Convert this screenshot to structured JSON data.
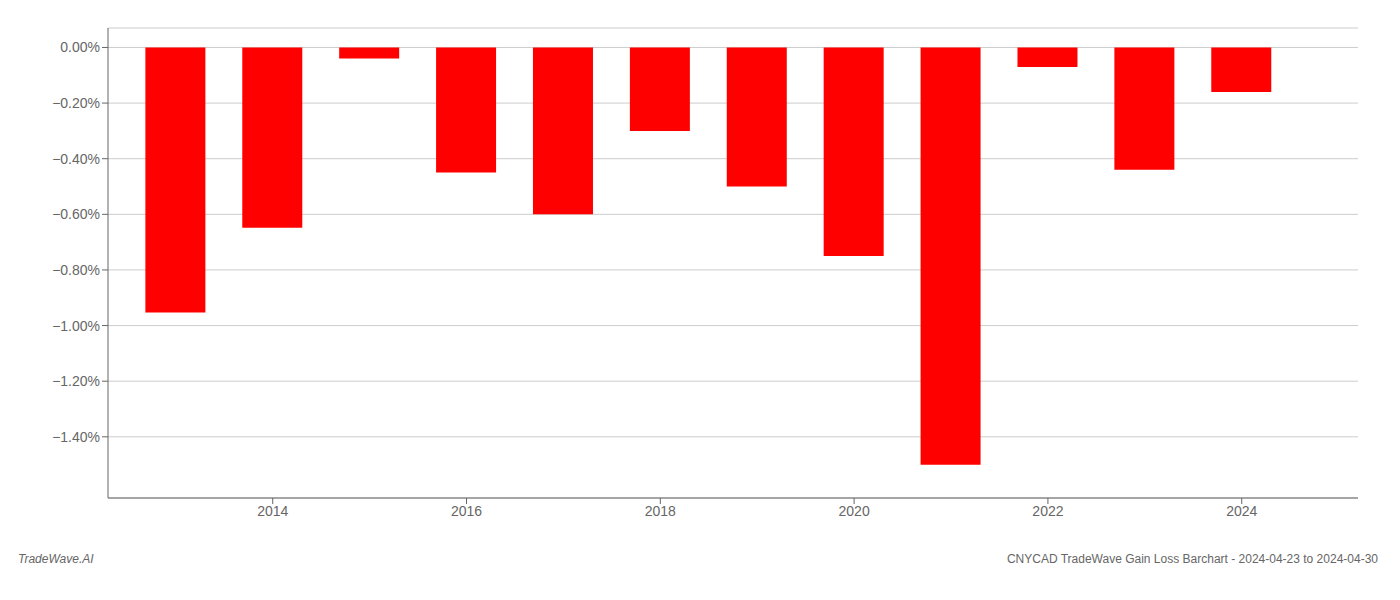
{
  "chart_data": {
    "type": "bar",
    "x": [
      2013,
      2014,
      2015,
      2016,
      2017,
      2018,
      2019,
      2020,
      2021,
      2022,
      2023,
      2024
    ],
    "values": [
      -0.953,
      -0.648,
      -0.04,
      -0.45,
      -0.6,
      -0.3,
      -0.5,
      -0.75,
      -1.5,
      -0.07,
      -0.44,
      -0.16
    ],
    "color": "#ff0000",
    "xlim": [
      2012.3,
      2025.2
    ],
    "xticks": [
      2014,
      2016,
      2018,
      2020,
      2022,
      2024
    ],
    "ylim": [
      -1.62,
      0.07
    ],
    "yticks": [
      {
        "value": 0.0,
        "label": "0.00%"
      },
      {
        "value": -0.2,
        "label": "−0.20%"
      },
      {
        "value": -0.4,
        "label": "−0.40%"
      },
      {
        "value": -0.6,
        "label": "−0.60%"
      },
      {
        "value": -0.8,
        "label": "−0.80%"
      },
      {
        "value": -1.0,
        "label": "−1.00%"
      },
      {
        "value": -1.2,
        "label": "−1.20%"
      },
      {
        "value": -1.4,
        "label": "−1.40%"
      }
    ],
    "grid": true,
    "annotations": [
      "TradeWave.AI",
      "CNYCAD TradeWave Gain Loss Barchart - 2024-04-23 to 2024-04-30"
    ]
  }
}
